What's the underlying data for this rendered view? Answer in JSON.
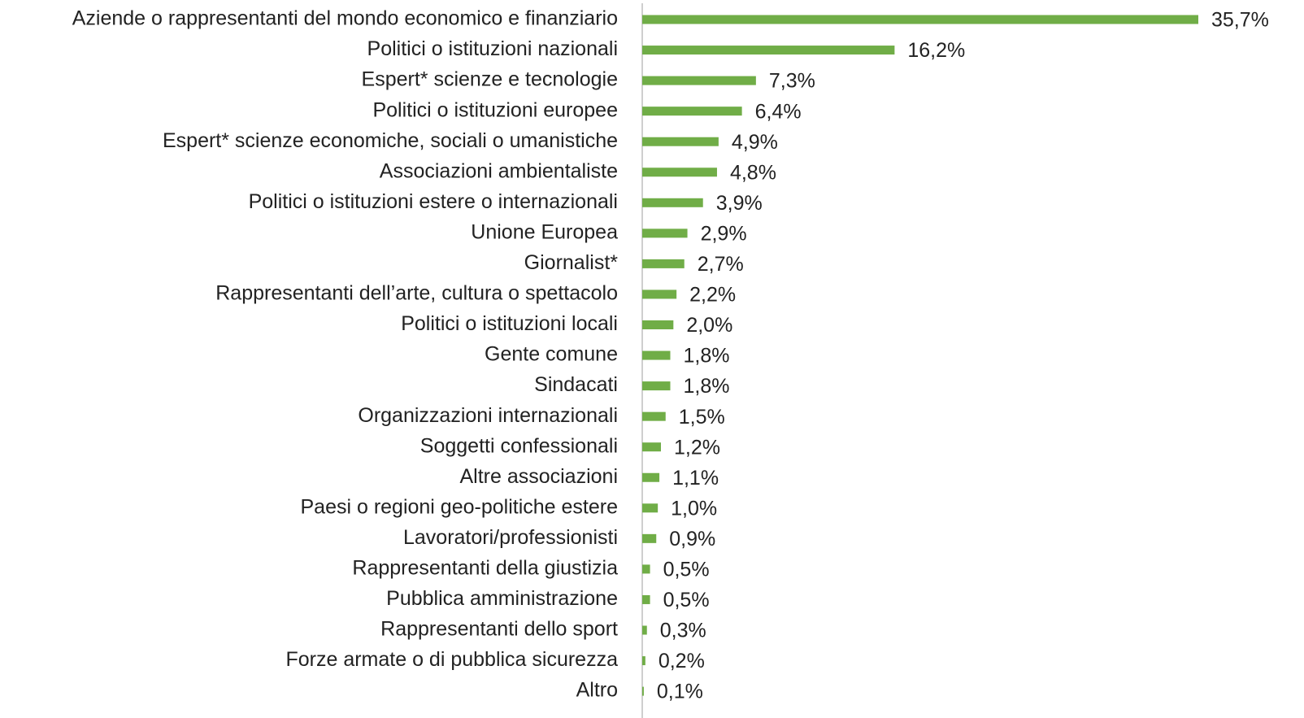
{
  "chart_data": {
    "type": "bar",
    "orientation": "horizontal",
    "color": "#70ad47",
    "categories": [
      "Aziende o rappresentanti del mondo economico e finanziario",
      "Politici o istituzioni nazionali",
      "Espert* scienze e tecnologie",
      "Politici o istituzioni europee",
      "Espert* scienze economiche, sociali o umanistiche",
      "Associazioni ambientaliste",
      "Politici o istituzioni estere o internazionali",
      "Unione Europea",
      "Giornalist*",
      "Rappresentanti dell’arte, cultura o spettacolo",
      "Politici o istituzioni locali",
      "Gente comune",
      "Sindacati",
      "Organizzazioni internazionali",
      "Soggetti confessionali",
      "Altre associazioni",
      "Paesi o regioni geo-politiche estere",
      "Lavoratori/professionisti",
      "Rappresentanti della giustizia",
      "Pubblica amministrazione",
      "Rappresentanti dello sport",
      "Forze armate o di pubblica sicurezza",
      "Altro"
    ],
    "values": [
      35.7,
      16.2,
      7.3,
      6.4,
      4.9,
      4.8,
      3.9,
      2.9,
      2.7,
      2.2,
      2.0,
      1.8,
      1.8,
      1.5,
      1.2,
      1.1,
      1.0,
      0.9,
      0.5,
      0.5,
      0.3,
      0.2,
      0.1
    ],
    "value_labels": [
      "35,7%",
      "16,2%",
      "7,3%",
      "6,4%",
      "4,9%",
      "4,8%",
      "3,9%",
      "2,9%",
      "2,7%",
      "2,2%",
      "2,0%",
      "1,8%",
      "1,8%",
      "1,5%",
      "1,2%",
      "1,1%",
      "1,0%",
      "0,9%",
      "0,5%",
      "0,5%",
      "0,3%",
      "0,2%",
      "0,1%"
    ]
  }
}
